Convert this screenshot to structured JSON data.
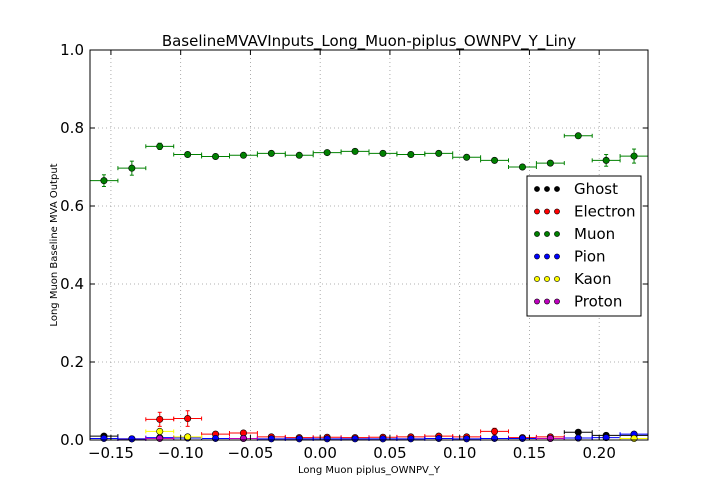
{
  "chart_data": {
    "type": "scatter",
    "title": "BaselineMVAVInputs_Long_Muon-piplus_OWNPV_Y_Liny",
    "xlabel": "Long Muon piplus_OWNPV_Y",
    "ylabel": "Long Muon Baseline MVA Output",
    "xlim": [
      -0.165,
      0.235
    ],
    "ylim": [
      0.0,
      1.0
    ],
    "x_tick_labels": [
      "−0.15",
      "−0.10",
      "−0.05",
      "0.00",
      "0.05",
      "0.10",
      "0.15",
      "0.20"
    ],
    "x_ticks": [
      -0.15,
      -0.1,
      -0.05,
      0.0,
      0.05,
      0.1,
      0.15,
      0.2
    ],
    "y_tick_labels": [
      "0.0",
      "0.2",
      "0.4",
      "0.6",
      "0.8",
      "1.0"
    ],
    "y_ticks": [
      0.0,
      0.2,
      0.4,
      0.6,
      0.8,
      1.0
    ],
    "grid": true,
    "legend_position": "center-right",
    "bin_half_width": 0.01,
    "series": [
      {
        "name": "Ghost",
        "color": "#000000",
        "x": [
          -0.155,
          0.185,
          0.205,
          0.225
        ],
        "y": [
          0.01,
          0.02,
          0.012,
          0.012
        ],
        "yerr": [
          0.003,
          0.004,
          0.003,
          0.003
        ]
      },
      {
        "name": "Electron",
        "color": "#ff0000",
        "x": [
          -0.135,
          -0.115,
          -0.095,
          -0.075,
          -0.055,
          -0.035,
          -0.015,
          0.005,
          0.025,
          0.045,
          0.065,
          0.085,
          0.105,
          0.125,
          0.145,
          0.165,
          0.185
        ],
        "y": [
          0.003,
          0.053,
          0.055,
          0.015,
          0.018,
          0.008,
          0.006,
          0.007,
          0.006,
          0.007,
          0.008,
          0.01,
          0.008,
          0.022,
          0.006,
          0.008,
          0.005
        ],
        "yerr": [
          0.003,
          0.018,
          0.02,
          0.006,
          0.006,
          0.003,
          0.003,
          0.003,
          0.003,
          0.003,
          0.003,
          0.004,
          0.003,
          0.008,
          0.003,
          0.004,
          0.003
        ]
      },
      {
        "name": "Muon",
        "color": "#008000",
        "x": [
          -0.155,
          -0.135,
          -0.115,
          -0.095,
          -0.075,
          -0.055,
          -0.035,
          -0.015,
          0.005,
          0.025,
          0.045,
          0.065,
          0.085,
          0.105,
          0.125,
          0.145,
          0.165,
          0.185,
          0.205,
          0.225
        ],
        "y": [
          0.665,
          0.697,
          0.753,
          0.732,
          0.727,
          0.73,
          0.735,
          0.73,
          0.737,
          0.74,
          0.735,
          0.732,
          0.735,
          0.725,
          0.717,
          0.7,
          0.71,
          0.78,
          0.717,
          0.728
        ],
        "yerr": [
          0.015,
          0.018,
          0.008,
          0.005,
          0.004,
          0.004,
          0.004,
          0.004,
          0.004,
          0.004,
          0.004,
          0.004,
          0.004,
          0.004,
          0.005,
          0.005,
          0.006,
          0.005,
          0.015,
          0.018
        ]
      },
      {
        "name": "Pion",
        "color": "#0000ff",
        "x": [
          -0.155,
          -0.135,
          -0.115,
          -0.095,
          -0.075,
          -0.055,
          -0.035,
          -0.015,
          0.005,
          0.025,
          0.045,
          0.065,
          0.085,
          0.105,
          0.125,
          0.145,
          0.165,
          0.185,
          0.205,
          0.225
        ],
        "y": [
          0.004,
          0.003,
          0.006,
          0.005,
          0.004,
          0.004,
          0.003,
          0.003,
          0.003,
          0.003,
          0.003,
          0.003,
          0.004,
          0.003,
          0.004,
          0.004,
          0.004,
          0.005,
          0.006,
          0.015
        ],
        "yerr": [
          0.002,
          0.002,
          0.002,
          0.002,
          0.002,
          0.002,
          0.002,
          0.002,
          0.002,
          0.002,
          0.002,
          0.002,
          0.002,
          0.002,
          0.002,
          0.002,
          0.002,
          0.002,
          0.003,
          0.004
        ]
      },
      {
        "name": "Kaon",
        "color": "#ffff00",
        "x": [
          -0.115,
          -0.095,
          0.225
        ],
        "y": [
          0.022,
          0.008,
          0.004
        ],
        "yerr": [
          0.006,
          0.004,
          0.003
        ]
      },
      {
        "name": "Proton",
        "color": "#bf00bf",
        "x": [
          -0.115,
          -0.055,
          0.165
        ],
        "y": [
          0.004,
          0.004,
          0.004
        ],
        "yerr": [
          0.002,
          0.002,
          0.002
        ]
      }
    ]
  }
}
